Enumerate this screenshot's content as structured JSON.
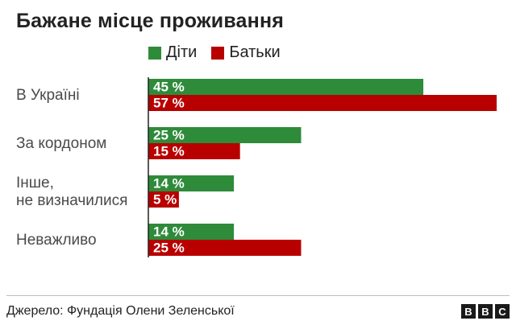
{
  "title": "Бажане місце проживання",
  "legend": [
    {
      "label": "Діти",
      "color": "#2e8b3a"
    },
    {
      "label": "Батьки",
      "color": "#b80000"
    }
  ],
  "chart_data": {
    "type": "bar",
    "orientation": "horizontal",
    "categories": [
      [
        "В Україні"
      ],
      [
        "За кордоном"
      ],
      [
        "Інше,",
        "не визначилися"
      ],
      [
        "Неважливо"
      ]
    ],
    "series": [
      {
        "name": "Діти",
        "color": "#2e8b3a",
        "values": [
          45,
          25,
          14,
          14
        ],
        "labels": [
          "45 %",
          "25 %",
          "14 %",
          "14 %"
        ]
      },
      {
        "name": "Батьки",
        "color": "#b80000",
        "values": [
          57,
          15,
          5,
          25
        ],
        "labels": [
          "57 %",
          "15 %",
          "5 %",
          "25 %"
        ]
      }
    ],
    "xlim": [
      0,
      57
    ],
    "grid": false,
    "legend_position": "top"
  },
  "footer": {
    "source": "Джерело: Фундація Олени Зеленської",
    "logo": [
      "B",
      "B",
      "C"
    ]
  }
}
